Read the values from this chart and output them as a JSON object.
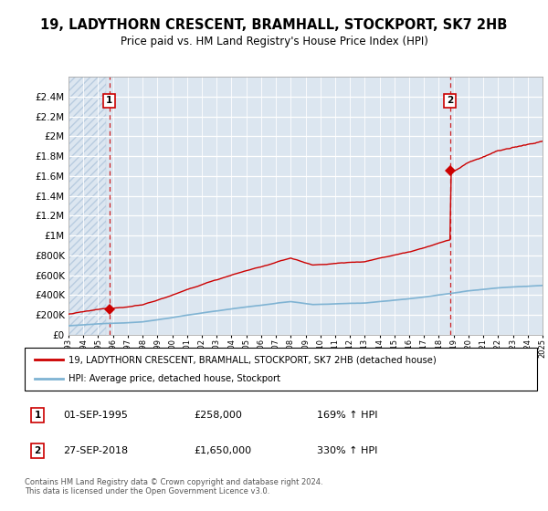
{
  "title": "19, LADYTHORN CRESCENT, BRAMHALL, STOCKPORT, SK7 2HB",
  "subtitle": "Price paid vs. HM Land Registry's House Price Index (HPI)",
  "legend_line1": "19, LADYTHORN CRESCENT, BRAMHALL, STOCKPORT, SK7 2HB (detached house)",
  "legend_line2": "HPI: Average price, detached house, Stockport",
  "sale1_label": "1",
  "sale2_label": "2",
  "sale1_date": "01-SEP-1995",
  "sale1_price": "£258,000",
  "sale1_hpi": "169% ↑ HPI",
  "sale2_date": "27-SEP-2018",
  "sale2_price": "£1,650,000",
  "sale2_hpi": "330% ↑ HPI",
  "footnote": "Contains HM Land Registry data © Crown copyright and database right 2024.\nThis data is licensed under the Open Government Licence v3.0.",
  "sale1_year": 1995.75,
  "sale1_value": 258000,
  "sale2_year": 2018.75,
  "sale2_value": 1650000,
  "ylim": [
    0,
    2600000
  ],
  "xlim": [
    1993,
    2025
  ],
  "plot_bg": "#dce6f0",
  "hatch_bg": "#dce6f0",
  "hatch_color": "#b8cce0",
  "red_color": "#cc0000",
  "blue_color": "#7fb3d3",
  "dashed_red": "#cc0000",
  "box_border": "#cc0000",
  "grid_color": "#ffffff"
}
